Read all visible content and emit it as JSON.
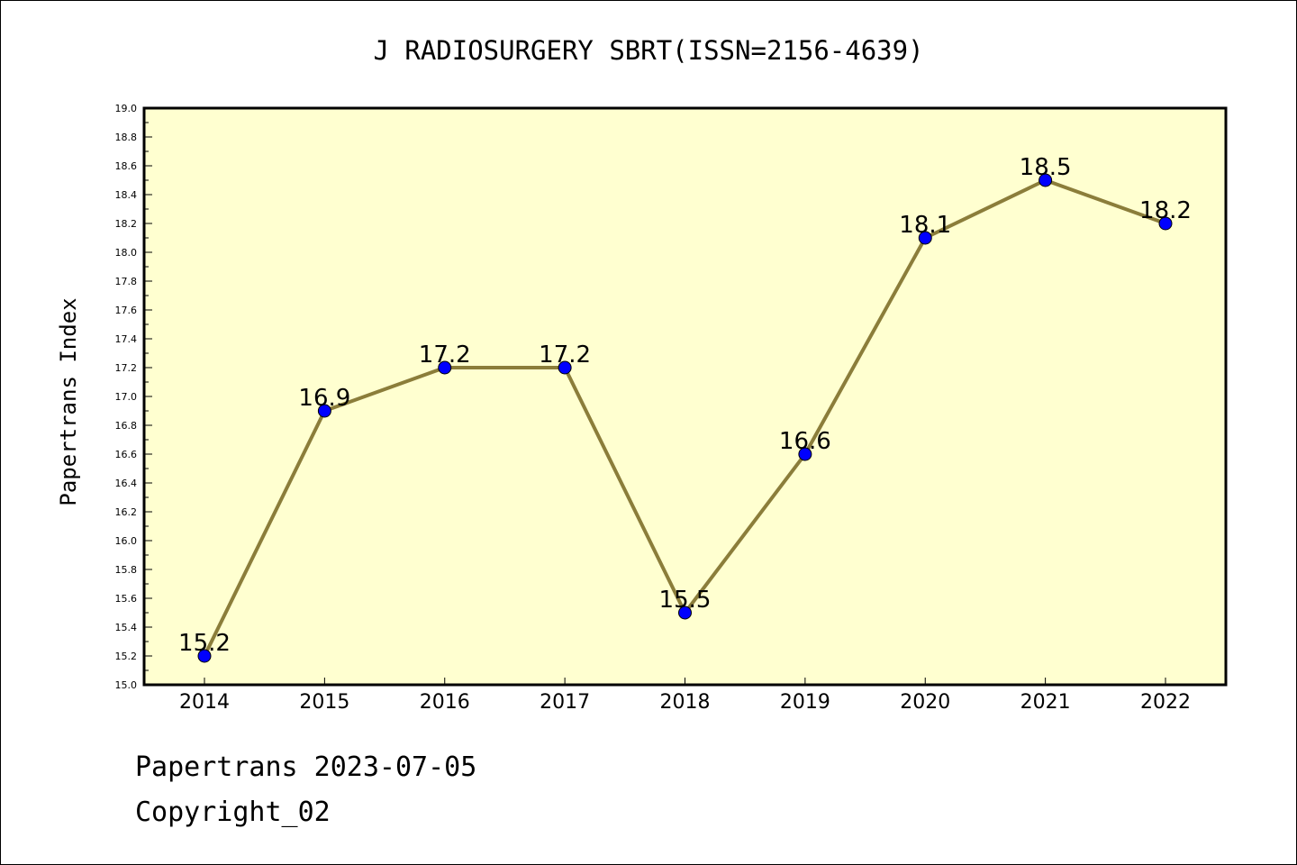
{
  "chart_data": {
    "type": "line",
    "title": "J RADIOSURGERY SBRT(ISSN=2156-4639)",
    "xlabel": "",
    "ylabel": "Papertrans Index",
    "categories": [
      "2014",
      "2015",
      "2016",
      "2017",
      "2018",
      "2019",
      "2020",
      "2021",
      "2022"
    ],
    "series": [
      {
        "values": [
          15.2,
          16.9,
          17.2,
          17.2,
          15.5,
          16.6,
          18.1,
          18.5,
          18.2
        ],
        "labels": [
          "15.2",
          "16.9",
          "17.2",
          "17.2",
          "15.5",
          "16.6",
          "18.1",
          "18.5",
          "18.2"
        ]
      }
    ],
    "ylim": [
      15.0,
      19.0
    ],
    "yticks": [
      "15.0",
      "15.2",
      "15.4",
      "15.6",
      "15.8",
      "16.0",
      "16.2",
      "16.4",
      "16.6",
      "16.8",
      "17.0",
      "17.2",
      "17.4",
      "17.6",
      "17.8",
      "18.0",
      "18.2",
      "18.4",
      "18.6",
      "18.8",
      "19.0"
    ],
    "grid": false,
    "colors": {
      "plot_background": "#ffffd0",
      "line": "#8b7d3a",
      "marker": "#0000ff"
    }
  },
  "footer": {
    "line1": "Papertrans 2023-07-05",
    "line2": "Copyright_02"
  }
}
